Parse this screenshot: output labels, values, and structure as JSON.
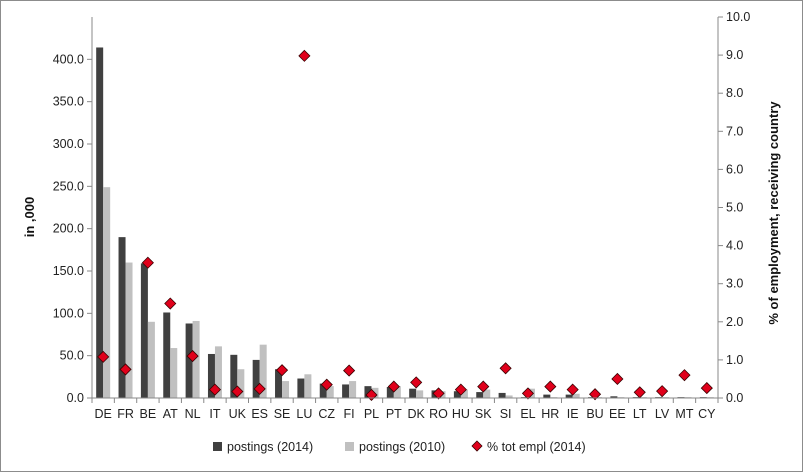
{
  "chart_data": {
    "type": "bar",
    "categories": [
      "DE",
      "FR",
      "BE",
      "AT",
      "NL",
      "IT",
      "UK",
      "ES",
      "SE",
      "LU",
      "CZ",
      "FI",
      "PL",
      "PT",
      "DK",
      "RO",
      "HU",
      "SK",
      "SI",
      "EL",
      "HR",
      "IE",
      "BU",
      "EE",
      "LT",
      "LV",
      "MT",
      "CY"
    ],
    "series": [
      {
        "name": "postings (2014)",
        "axis": "left",
        "color": "#404040",
        "values": [
          414,
          190,
          159,
          101,
          88,
          52,
          51,
          45,
          34,
          23,
          17,
          16,
          14,
          13,
          11,
          9,
          8,
          7,
          6,
          1,
          4,
          4,
          1,
          2,
          1,
          1,
          1,
          1
        ]
      },
      {
        "name": "postings (2010)",
        "axis": "left",
        "color": "#c0c0c0",
        "values": [
          249,
          160,
          90,
          59,
          91,
          61,
          34,
          63,
          20,
          28,
          14,
          20,
          12,
          14,
          9,
          8,
          10,
          10,
          3,
          11,
          1,
          5,
          1,
          1,
          1,
          1,
          1,
          1
        ]
      },
      {
        "name": "% tot empl (2014)",
        "axis": "right",
        "type": "scatter",
        "marker": "diamond",
        "color": "#e0001b",
        "values": [
          1.08,
          0.75,
          3.55,
          2.48,
          1.1,
          0.22,
          0.17,
          0.24,
          0.73,
          8.98,
          0.35,
          0.72,
          0.08,
          0.3,
          0.41,
          0.12,
          0.22,
          0.3,
          0.78,
          0.12,
          0.3,
          0.22,
          0.1,
          0.5,
          0.15,
          0.18,
          0.6,
          0.26
        ]
      }
    ],
    "y_left": {
      "label": "in ,000",
      "range": [
        0,
        450
      ],
      "ticks": [
        "0.0",
        "50.0",
        "100.0",
        "150.0",
        "200.0",
        "250.0",
        "300.0",
        "350.0",
        "400.0"
      ],
      "tick_values": [
        0,
        50,
        100,
        150,
        200,
        250,
        300,
        350,
        400
      ]
    },
    "y_right": {
      "label": "% of employment, receiving country",
      "range": [
        0,
        10
      ],
      "ticks": [
        "0.0",
        "1.0",
        "2.0",
        "3.0",
        "4.0",
        "5.0",
        "6.0",
        "7.0",
        "8.0",
        "9.0",
        "10.0"
      ],
      "tick_values": [
        0,
        1,
        2,
        3,
        4,
        5,
        6,
        7,
        8,
        9,
        10
      ]
    },
    "grid": false,
    "legend_position": "bottom"
  }
}
